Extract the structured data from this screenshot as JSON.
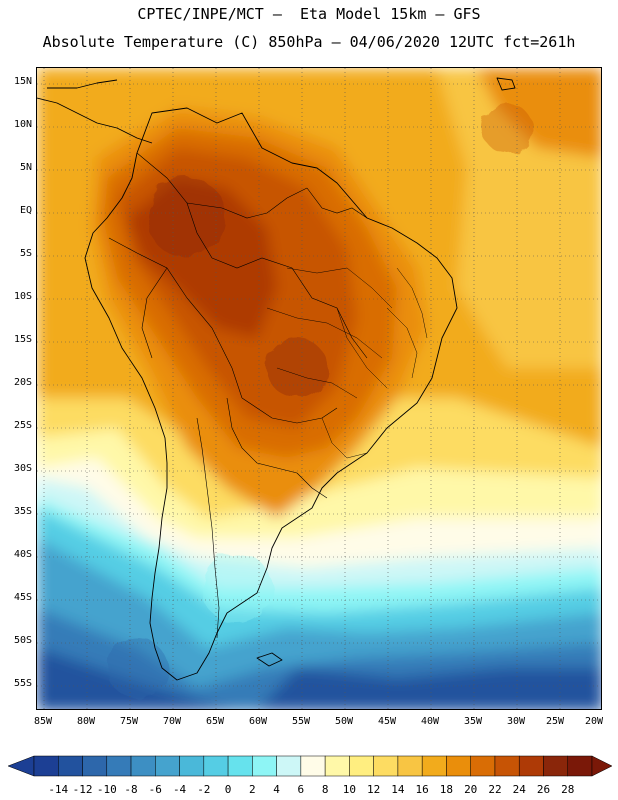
{
  "title_line1": "CPTEC/INPE/MCT –  Eta Model 15km – GFS",
  "title_line2": "Absolute Temperature (C) 850hPa – 04/06/2020 12UTC fct=261h",
  "map": {
    "projection": "lat-lon",
    "lon_range": [
      -85,
      -20
    ],
    "lat_range": [
      -59,
      16
    ],
    "features": [
      "coastlines",
      "country-borders",
      "state-borders",
      "dotted-graticule"
    ],
    "latitude_labels": [
      "15N",
      "10N",
      "5N",
      "EQ",
      "5S",
      "10S",
      "15S",
      "20S",
      "25S",
      "30S",
      "35S",
      "40S",
      "45S",
      "50S",
      "55S"
    ],
    "longitude_labels": [
      "85W",
      "80W",
      "75W",
      "70W",
      "65W",
      "60W",
      "55W",
      "50W",
      "45W",
      "40W",
      "35W",
      "30W",
      "25W",
      "20W"
    ],
    "field": "temperature at 850hPa",
    "pattern": "warm core (22–26 C) over central Brazil, Amazon and Bolivia; cold (-12 to -4 C) southern ocean south of 45S"
  },
  "colorbar": {
    "labels": [
      "-14",
      "-12",
      "-10",
      "-8",
      "-6",
      "-4",
      "-2",
      "0",
      "2",
      "4",
      "6",
      "8",
      "10",
      "12",
      "14",
      "16",
      "18",
      "20",
      "22",
      "24",
      "26",
      "28"
    ],
    "colors": [
      "#1c3f94",
      "#22529e",
      "#2d67ab",
      "#357bb8",
      "#3d8fc3",
      "#45a3ce",
      "#4ab8d9",
      "#55cde4",
      "#66e2ed",
      "#8ef5f5",
      "#cdf7f7",
      "#fffce8",
      "#fff8a8",
      "#ffee80",
      "#fddc62",
      "#f8c543",
      "#f2ab1c",
      "#ea8e0b",
      "#d96d05",
      "#c75405",
      "#ae3a06",
      "#8a260a",
      "#7a1808"
    ]
  }
}
